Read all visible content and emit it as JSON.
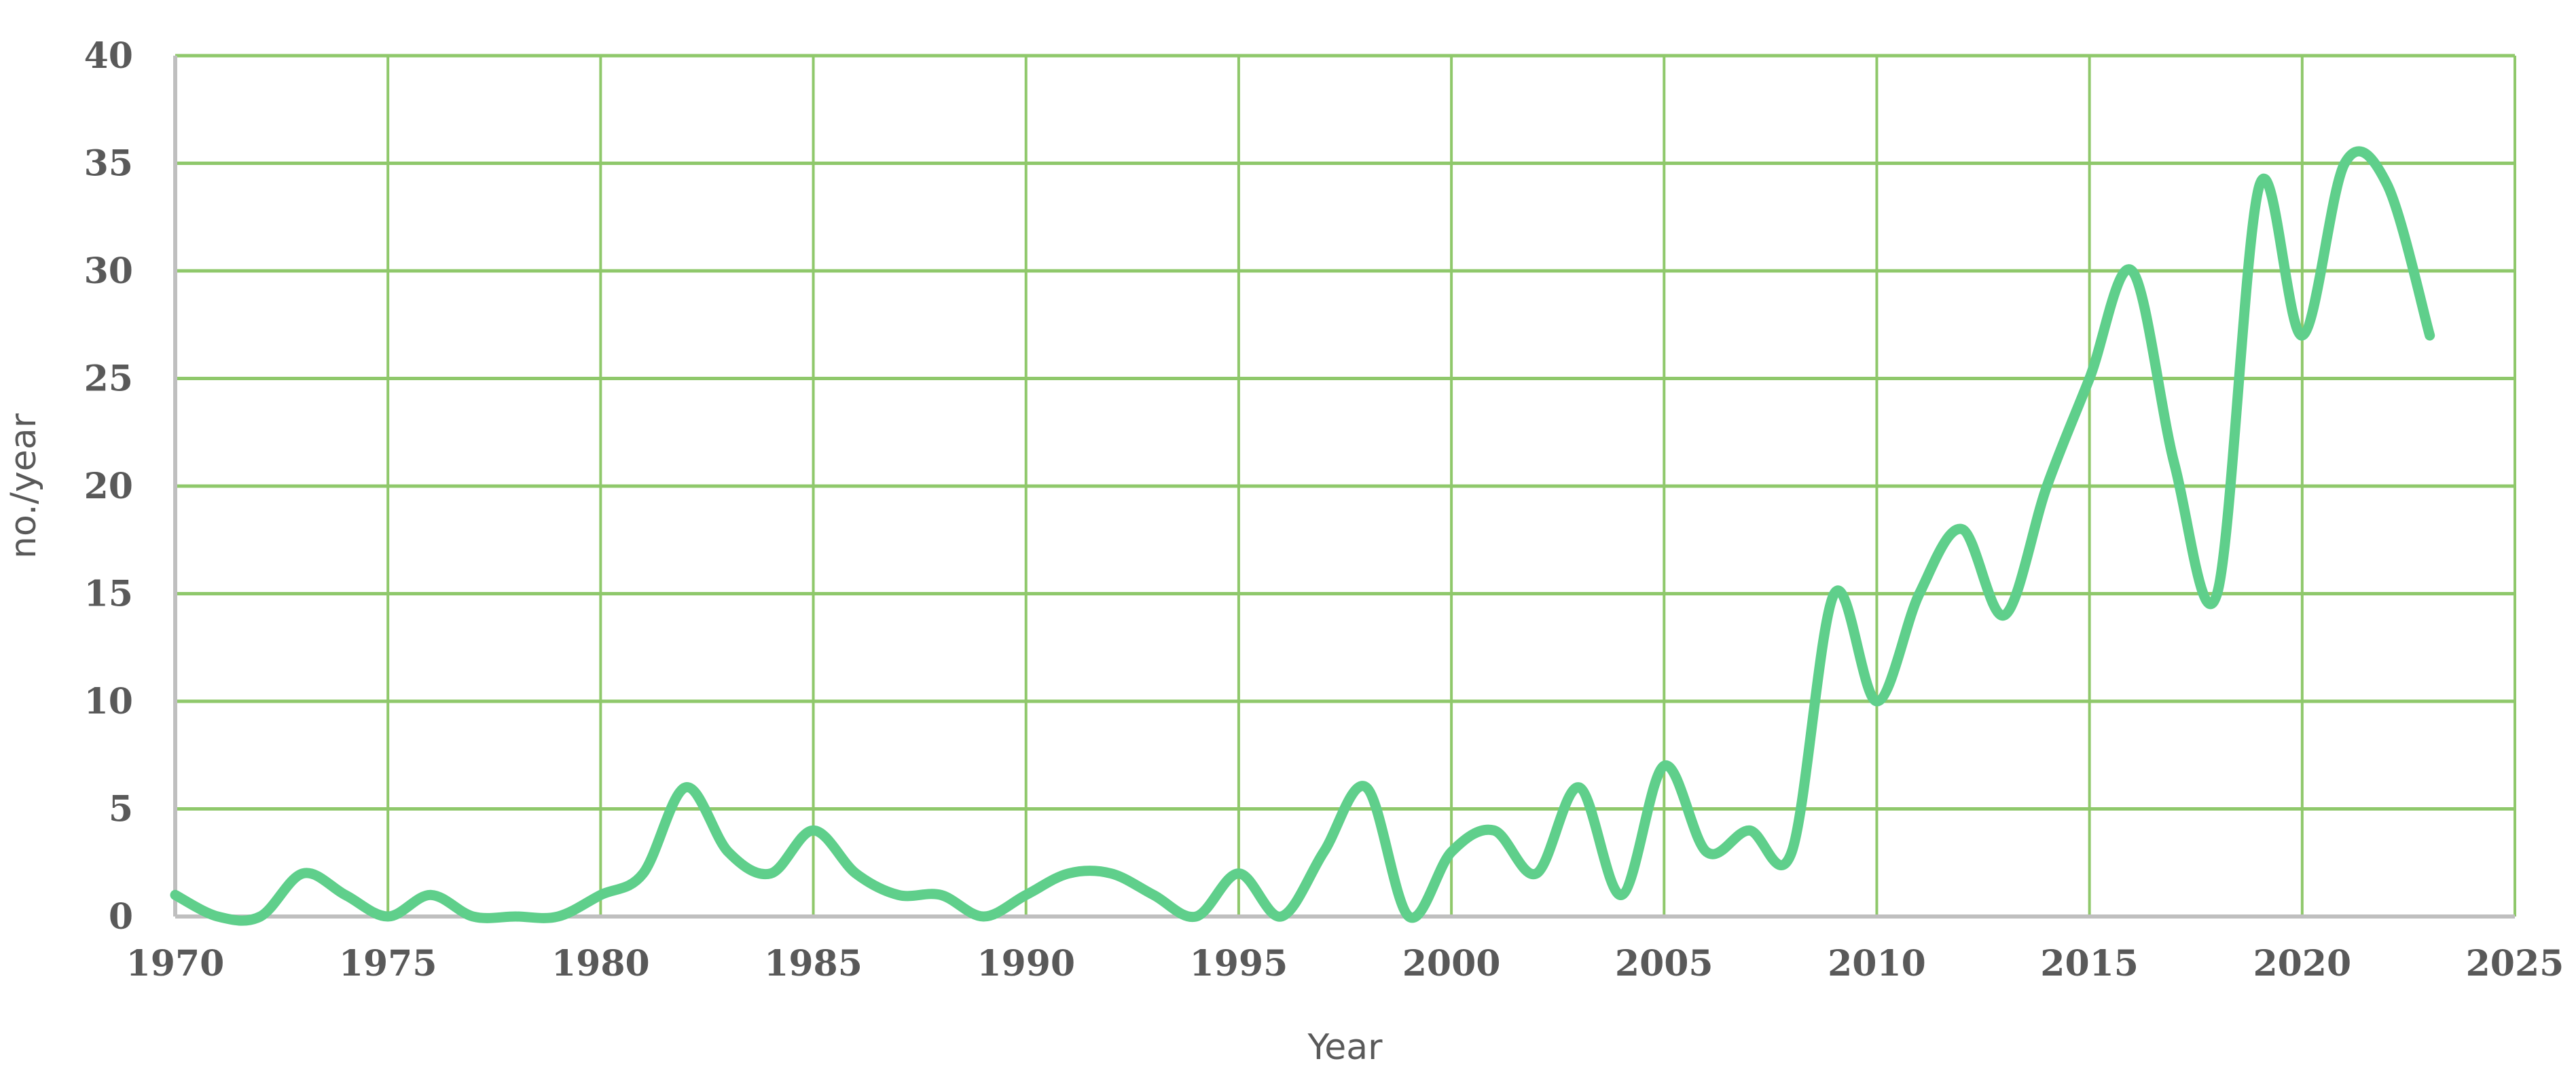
{
  "chart_data": {
    "type": "line",
    "title": "",
    "xlabel": "Year",
    "ylabel": "no./year",
    "xlim": [
      1970,
      2025
    ],
    "ylim": [
      0,
      40
    ],
    "x_ticks": [
      1970,
      1975,
      1980,
      1985,
      1990,
      1995,
      2000,
      2005,
      2010,
      2015,
      2020,
      2025
    ],
    "y_ticks": [
      0,
      5,
      10,
      15,
      20,
      25,
      30,
      35,
      40
    ],
    "x_tick_labels": [
      "1970",
      "1975",
      "1980",
      "1985",
      "1990",
      "1995",
      "2000",
      "2005",
      "2010",
      "2015",
      "2020",
      "2025"
    ],
    "y_tick_labels": [
      "0",
      "5",
      "10",
      "15",
      "20",
      "25",
      "30",
      "35",
      "40"
    ],
    "grid": true,
    "smooth": true,
    "colors": {
      "line": "#5fcf8b",
      "grid": "#8fc86b",
      "axis": "#bfbfbf",
      "text": "#595959"
    },
    "series": [
      {
        "x": [
          1970,
          1971,
          1972,
          1973,
          1974,
          1975,
          1976,
          1977,
          1978,
          1979,
          1980,
          1981,
          1982,
          1983,
          1984,
          1985,
          1986,
          1987,
          1988,
          1989,
          1990,
          1991,
          1992,
          1993,
          1994,
          1995,
          1996,
          1997,
          1998,
          1999,
          2000,
          2001,
          2002,
          2003,
          2004,
          2005,
          2006,
          2007,
          2008,
          2009,
          2010,
          2011,
          2012,
          2013,
          2014,
          2015,
          2016,
          2017,
          2018,
          2019,
          2020,
          2021,
          2022,
          2023
        ],
        "values": [
          1,
          0,
          0,
          2,
          1,
          0,
          1,
          0,
          0,
          0,
          1,
          2,
          6,
          3,
          2,
          4,
          2,
          1,
          1,
          0,
          1,
          2,
          2,
          1,
          0,
          2,
          0,
          3,
          6,
          0,
          3,
          4,
          2,
          6,
          1,
          7,
          3,
          4,
          3,
          15,
          10,
          15,
          18,
          14,
          20,
          25,
          30,
          21,
          15,
          34,
          27,
          35,
          34,
          27
        ]
      }
    ]
  }
}
